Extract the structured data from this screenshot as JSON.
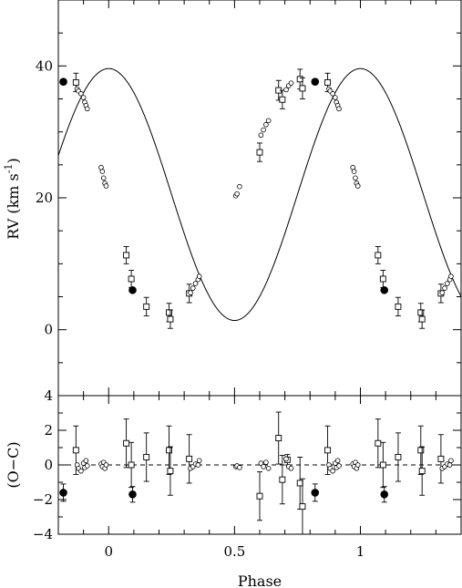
{
  "chart_data": [
    {
      "type": "scatter",
      "panel": "top",
      "xlabel": "",
      "ylabel": "RV (km s",
      "ylabel_sup": "-1",
      "ylabel_close": ")",
      "xlim": [
        -0.2,
        1.4
      ],
      "ylim": [
        -10,
        50
      ],
      "xticks": [
        0,
        0.5,
        1
      ],
      "yticks": [
        0,
        20,
        40
      ],
      "ytick_labels": [
        "0",
        "20",
        "40"
      ],
      "fit_curve": {
        "gamma": 20.5,
        "K": 19.1,
        "phase_offset": 0.0
      },
      "series": [
        {
          "marker": "open-square-errorbar",
          "points": [
            {
              "x": -0.13,
              "y": 37.5,
              "err": 1.4
            },
            {
              "x": 0.07,
              "y": 11.3,
              "err": 1.3
            },
            {
              "x": 0.09,
              "y": 7.7,
              "err": 1.3
            },
            {
              "x": 0.15,
              "y": 3.5,
              "err": 1.4
            },
            {
              "x": 0.24,
              "y": 2.6,
              "err": 1.4
            },
            {
              "x": 0.245,
              "y": 1.6,
              "err": 1.4
            },
            {
              "x": 0.32,
              "y": 5.5,
              "err": 1.4
            },
            {
              "x": 0.6,
              "y": 26.9,
              "err": 1.4
            },
            {
              "x": 0.675,
              "y": 36.3,
              "err": 1.5
            },
            {
              "x": 0.69,
              "y": 34.9,
              "err": 1.4
            },
            {
              "x": 0.76,
              "y": 38.0,
              "err": 1.5
            },
            {
              "x": 0.77,
              "y": 36.6,
              "err": 1.6
            }
          ]
        },
        {
          "marker": "open-circle",
          "points": [
            {
              "x": -0.125,
              "y": 36.5
            },
            {
              "x": -0.12,
              "y": 36.2
            },
            {
              "x": -0.11,
              "y": 35.8
            },
            {
              "x": -0.1,
              "y": 35.2
            },
            {
              "x": -0.095,
              "y": 34.5
            },
            {
              "x": -0.09,
              "y": 34.0
            },
            {
              "x": -0.085,
              "y": 33.5
            },
            {
              "x": -0.03,
              "y": 24.6
            },
            {
              "x": -0.025,
              "y": 24.0
            },
            {
              "x": -0.02,
              "y": 23.0
            },
            {
              "x": -0.015,
              "y": 22.2
            },
            {
              "x": -0.01,
              "y": 21.8
            },
            {
              "x": 0.325,
              "y": 5.6
            },
            {
              "x": 0.335,
              "y": 6.3
            },
            {
              "x": 0.345,
              "y": 7.0
            },
            {
              "x": 0.355,
              "y": 7.6
            },
            {
              "x": 0.36,
              "y": 8.1
            },
            {
              "x": 0.505,
              "y": 20.3
            },
            {
              "x": 0.51,
              "y": 20.6
            },
            {
              "x": 0.52,
              "y": 21.7
            },
            {
              "x": 0.605,
              "y": 29.5
            },
            {
              "x": 0.615,
              "y": 30.3
            },
            {
              "x": 0.625,
              "y": 31.1
            },
            {
              "x": 0.635,
              "y": 31.7
            },
            {
              "x": 0.705,
              "y": 36.4
            },
            {
              "x": 0.715,
              "y": 37.0
            },
            {
              "x": 0.725,
              "y": 37.4
            }
          ]
        },
        {
          "marker": "filled-circle",
          "points": [
            {
              "x": -0.18,
              "y": 37.6
            },
            {
              "x": 0.095,
              "y": 6.0
            }
          ]
        }
      ]
    },
    {
      "type": "scatter",
      "panel": "bottom",
      "xlabel": "Phase",
      "ylabel": "(O−C)",
      "xlim": [
        -0.2,
        1.4
      ],
      "ylim": [
        -4,
        4
      ],
      "xticks": [
        0,
        0.5,
        1
      ],
      "xtick_labels": [
        "0",
        "0.5",
        "1"
      ],
      "yticks": [
        -4,
        -2,
        0,
        2,
        4
      ],
      "ytick_labels": [
        "−4",
        "−2",
        "0",
        "2",
        "4"
      ],
      "zero_line": "dashed",
      "series": [
        {
          "marker": "open-square-errorbar",
          "points": [
            {
              "x": -0.13,
              "y": 0.85,
              "err": 1.4
            },
            {
              "x": 0.07,
              "y": 1.25,
              "err": 1.4
            },
            {
              "x": 0.09,
              "y": 0.0,
              "err": 1.3
            },
            {
              "x": 0.15,
              "y": 0.45,
              "err": 1.4
            },
            {
              "x": 0.24,
              "y": 0.85,
              "err": 1.4
            },
            {
              "x": 0.245,
              "y": -0.35,
              "err": 1.4
            },
            {
              "x": 0.32,
              "y": 0.35,
              "err": 1.4
            },
            {
              "x": 0.6,
              "y": -1.8,
              "err": 1.4
            },
            {
              "x": 0.675,
              "y": 1.55,
              "err": 1.5
            },
            {
              "x": 0.69,
              "y": -0.85,
              "err": 1.4
            },
            {
              "x": 0.71,
              "y": 0.3,
              "err": 0.3
            },
            {
              "x": 0.76,
              "y": -1.05,
              "err": 1.5
            },
            {
              "x": 0.77,
              "y": -2.4,
              "err": 1.6
            }
          ]
        },
        {
          "marker": "open-circle",
          "points": [
            {
              "x": -0.125,
              "y": 0.0
            },
            {
              "x": -0.12,
              "y": -0.2
            },
            {
              "x": -0.11,
              "y": -0.35
            },
            {
              "x": -0.1,
              "y": 0.1
            },
            {
              "x": -0.095,
              "y": -0.15
            },
            {
              "x": -0.09,
              "y": 0.25
            },
            {
              "x": -0.085,
              "y": -0.05
            },
            {
              "x": -0.03,
              "y": 0.05
            },
            {
              "x": -0.025,
              "y": -0.1
            },
            {
              "x": -0.02,
              "y": 0.15
            },
            {
              "x": -0.015,
              "y": -0.2
            },
            {
              "x": -0.01,
              "y": 0.0
            },
            {
              "x": 0.325,
              "y": -0.2
            },
            {
              "x": 0.335,
              "y": -0.1
            },
            {
              "x": 0.345,
              "y": 0.05
            },
            {
              "x": 0.355,
              "y": 0.0
            },
            {
              "x": 0.36,
              "y": 0.25
            },
            {
              "x": 0.505,
              "y": -0.1
            },
            {
              "x": 0.51,
              "y": -0.05
            },
            {
              "x": 0.52,
              "y": -0.15
            },
            {
              "x": 0.605,
              "y": 0.1
            },
            {
              "x": 0.615,
              "y": -0.1
            },
            {
              "x": 0.625,
              "y": 0.15
            },
            {
              "x": 0.635,
              "y": -0.2
            },
            {
              "x": 0.705,
              "y": 0.35
            },
            {
              "x": 0.715,
              "y": -0.1
            },
            {
              "x": 0.725,
              "y": -0.2
            }
          ]
        },
        {
          "marker": "filled-circle",
          "points": [
            {
              "x": -0.18,
              "y": -1.6,
              "err": 0.5
            },
            {
              "x": 0.095,
              "y": -1.7,
              "err": 0.45
            }
          ]
        }
      ]
    }
  ]
}
